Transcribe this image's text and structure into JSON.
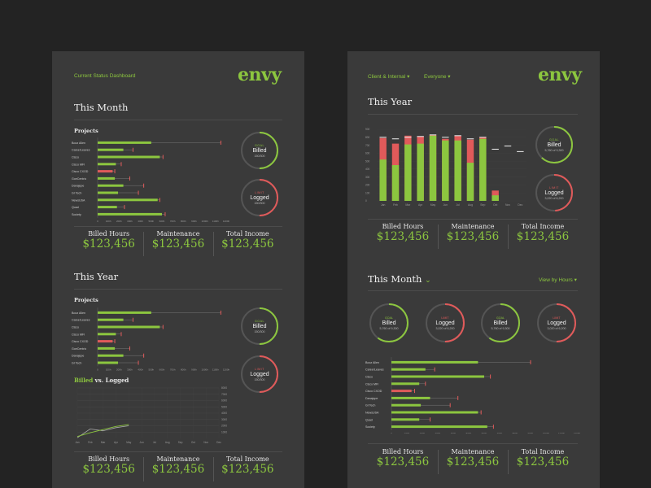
{
  "colors": {
    "accent": "#8cc63f",
    "alert": "#e05a5a",
    "panel": "#3a3a3a",
    "background": "#232323"
  },
  "left": {
    "header_link": "Current Status Dashboard",
    "logo": "envy",
    "month": {
      "title": "This Month",
      "projects_label": "Projects",
      "axis_ticks": [
        "0",
        "100h",
        "200h",
        "300h",
        "400h",
        "500h",
        "600h",
        "700h",
        "800h",
        "900h",
        "1000h",
        "1100h",
        "1200h"
      ],
      "rows": [
        {
          "name": "Booz Allen",
          "value": 500,
          "target": 1150,
          "alert": false
        },
        {
          "name": "CareerLeaves",
          "value": 240,
          "target": 330,
          "alert": false
        },
        {
          "name": "Cisco",
          "value": 580,
          "target": 610,
          "alert": false
        },
        {
          "name": "Cisco MFI",
          "value": 170,
          "target": 220,
          "alert": false
        },
        {
          "name": "Cisco CXOD",
          "value": 140,
          "target": 160,
          "alert": true
        },
        {
          "name": "GoeCentric",
          "value": 160,
          "target": 300,
          "alert": false
        },
        {
          "name": "Danajope",
          "value": 240,
          "target": 430,
          "alert": false
        },
        {
          "name": "GI Tech",
          "value": 190,
          "target": 380,
          "alert": false
        },
        {
          "name": "NewsUSA",
          "value": 560,
          "target": 580,
          "alert": false
        },
        {
          "name": "Quad",
          "value": 180,
          "target": 250,
          "alert": false
        },
        {
          "name": "Society",
          "value": 600,
          "target": 630,
          "alert": false
        }
      ],
      "goal": {
        "tag": "GOAL",
        "label": "Billed",
        "value": "150/300",
        "fraction": 0.5
      },
      "limit": {
        "tag": "LIMIT",
        "label": "Logged",
        "value": "150/300",
        "fraction": 0.5
      },
      "stats": [
        {
          "label": "Billed Hours",
          "value": "$123,456"
        },
        {
          "label": "Maintenance",
          "value": "$123,456"
        },
        {
          "label": "Total Income",
          "value": "$123,456"
        }
      ]
    },
    "year": {
      "title": "This Year",
      "projects_label": "Projects",
      "axis_ticks": [
        "0",
        "100h",
        "200h",
        "300h",
        "400h",
        "500h",
        "600h",
        "700h",
        "800h",
        "900h",
        "1000h",
        "1100h",
        "1200h"
      ],
      "rows": [
        {
          "name": "Booz Allen",
          "value": 500,
          "target": 1150,
          "alert": false
        },
        {
          "name": "CareerLeaves",
          "value": 240,
          "target": 330,
          "alert": false
        },
        {
          "name": "Cisco",
          "value": 580,
          "target": 610,
          "alert": false
        },
        {
          "name": "Cisco MFI",
          "value": 170,
          "target": 220,
          "alert": false
        },
        {
          "name": "Cisco CXOD",
          "value": 140,
          "target": 160,
          "alert": true
        },
        {
          "name": "GoeCentric",
          "value": 160,
          "target": 300,
          "alert": false
        },
        {
          "name": "Danajope",
          "value": 240,
          "target": 430,
          "alert": false
        },
        {
          "name": "GI Tech",
          "value": 190,
          "target": 380,
          "alert": false
        }
      ],
      "goal": {
        "tag": "GOAL",
        "label": "Billed",
        "value": "150/300",
        "fraction": 0.5
      },
      "limit": {
        "tag": "LIMIT",
        "label": "Logged",
        "value": "150/300",
        "fraction": 0.5
      },
      "billed_word": "Billed",
      "vs_word": " vs. Logged",
      "line_months": [
        "Jan",
        "Feb",
        "Mar",
        "Apr",
        "May",
        "Jun",
        "Jul",
        "Aug",
        "Sep",
        "Oct",
        "Nov",
        "Dec"
      ],
      "line_y_ticks": [
        "8000",
        "7000",
        "6000",
        "5000",
        "4000",
        "3000",
        "2000",
        "1000"
      ],
      "billed_series": [
        300,
        900,
        1400,
        1900,
        2200
      ],
      "logged_series": [
        100,
        1500,
        1200,
        1700,
        2000
      ],
      "stats": [
        {
          "label": "Billed Hours",
          "value": "$123,456"
        },
        {
          "label": "Maintenance",
          "value": "$123,456"
        },
        {
          "label": "Total Income",
          "value": "$123,456"
        }
      ]
    }
  },
  "right": {
    "filter_client": "Client & Internal",
    "filter_people": "Everyone",
    "logo": "envy",
    "year": {
      "title": "This Year",
      "y_ticks": [
        "900",
        "800",
        "700",
        "600",
        "500",
        "400",
        "300",
        "200",
        "100",
        "0"
      ],
      "chart_data": {
        "type": "bar",
        "categories": [
          "Jan",
          "Feb",
          "Mar",
          "Apr",
          "May",
          "Jun",
          "Jul",
          "Aug",
          "Sep",
          "Oct",
          "Nov",
          "Dec"
        ],
        "series": [
          {
            "values": [
              520,
              450,
              710,
              720,
              820,
              760,
              760,
              480,
              780,
              70,
              0,
              0
            ]
          },
          {
            "values": [
              790,
              720,
              820,
              810,
              830,
              780,
              820,
              770,
              800,
              130,
              0,
              0
            ]
          }
        ],
        "targets": [
          800,
          780,
          800,
          810,
          830,
          800,
          820,
          780,
          800,
          650,
          690,
          620
        ],
        "ylim": [
          0,
          900
        ]
      },
      "goal": {
        "tag": "GOAL",
        "label": "Billed",
        "value": "5,760 of 9,300",
        "fraction": 0.62
      },
      "limit": {
        "tag": "LIMIT",
        "label": "Logged",
        "value": "3,020 of 6,200",
        "fraction": 0.49
      },
      "stats": [
        {
          "label": "Billed Hours",
          "value": "$123,456"
        },
        {
          "label": "Maintenance",
          "value": "$123,456"
        },
        {
          "label": "Total Income",
          "value": "$123,456"
        }
      ]
    },
    "month": {
      "title": "This Month",
      "view_toggle": "View by Hours",
      "circles": [
        {
          "tag": "GOAL",
          "label": "Billed",
          "value": "5,760 of 9,300",
          "type": "goal",
          "fraction": 0.6
        },
        {
          "tag": "LIMIT",
          "label": "Logged",
          "value": "3,020 of 6,200",
          "type": "limit",
          "fraction": 0.5
        },
        {
          "tag": "GOAL",
          "label": "Billed",
          "value": "5,760 of 9,300",
          "type": "goal",
          "fraction": 0.6
        },
        {
          "tag": "LIMIT",
          "label": "Logged",
          "value": "3,020 of 6,200",
          "type": "limit",
          "fraction": 0.5
        }
      ],
      "axis_ticks": [
        "0",
        "100h",
        "200h",
        "300h",
        "400h",
        "500h",
        "600h",
        "700h",
        "800h",
        "900h",
        "1000h",
        "1100h",
        "1200h"
      ],
      "rows": [
        {
          "name": "Booz Allen",
          "value": 560,
          "target": 900,
          "alert": false
        },
        {
          "name": "CareerLeaves",
          "value": 220,
          "target": 280,
          "alert": false
        },
        {
          "name": "Cisco",
          "value": 600,
          "target": 640,
          "alert": false
        },
        {
          "name": "Cisco MFI",
          "value": 180,
          "target": 220,
          "alert": false
        },
        {
          "name": "Cisco CXOD",
          "value": 130,
          "target": 150,
          "alert": true
        },
        {
          "name": "Danajope",
          "value": 250,
          "target": 430,
          "alert": false
        },
        {
          "name": "GI Tech",
          "value": 190,
          "target": 380,
          "alert": false
        },
        {
          "name": "NewsUSA",
          "value": 560,
          "target": 580,
          "alert": false
        },
        {
          "name": "Quad",
          "value": 180,
          "target": 250,
          "alert": false
        },
        {
          "name": "Society",
          "value": 620,
          "target": 660,
          "alert": false
        }
      ],
      "stats": [
        {
          "label": "Billed Hours",
          "value": "$123,456"
        },
        {
          "label": "Maintenance",
          "value": "$123,456"
        },
        {
          "label": "Total Income",
          "value": "$123,456"
        }
      ]
    }
  }
}
